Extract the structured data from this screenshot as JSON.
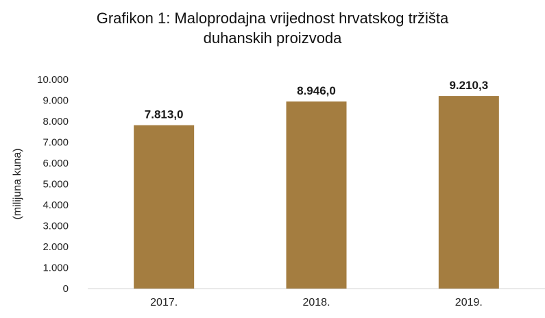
{
  "chart_data": {
    "type": "bar",
    "title_lines": [
      "Grafikon 1: Maloprodajna vrijednost hrvatskog tržišta",
      "duhanskih proizvoda"
    ],
    "ylabel": "(milijuna kuna)",
    "xlabel": "",
    "categories": [
      "2017.",
      "2018.",
      "2019."
    ],
    "values": [
      7813.0,
      8946.0,
      9210.3
    ],
    "value_labels": [
      "7.813,0",
      "8.946,0",
      "9.210,3"
    ],
    "ylim": [
      0,
      10000
    ],
    "yticks": [
      0,
      1000,
      2000,
      3000,
      4000,
      5000,
      6000,
      7000,
      8000,
      9000,
      10000
    ],
    "ytick_labels": [
      "0",
      "1.000",
      "2.000",
      "3.000",
      "4.000",
      "5.000",
      "6.000",
      "7.000",
      "8.000",
      "9.000",
      "10.000"
    ],
    "grid": false,
    "legend": "none",
    "bar_color": "#a47d40",
    "baseline_color": "#d0d0d0"
  }
}
